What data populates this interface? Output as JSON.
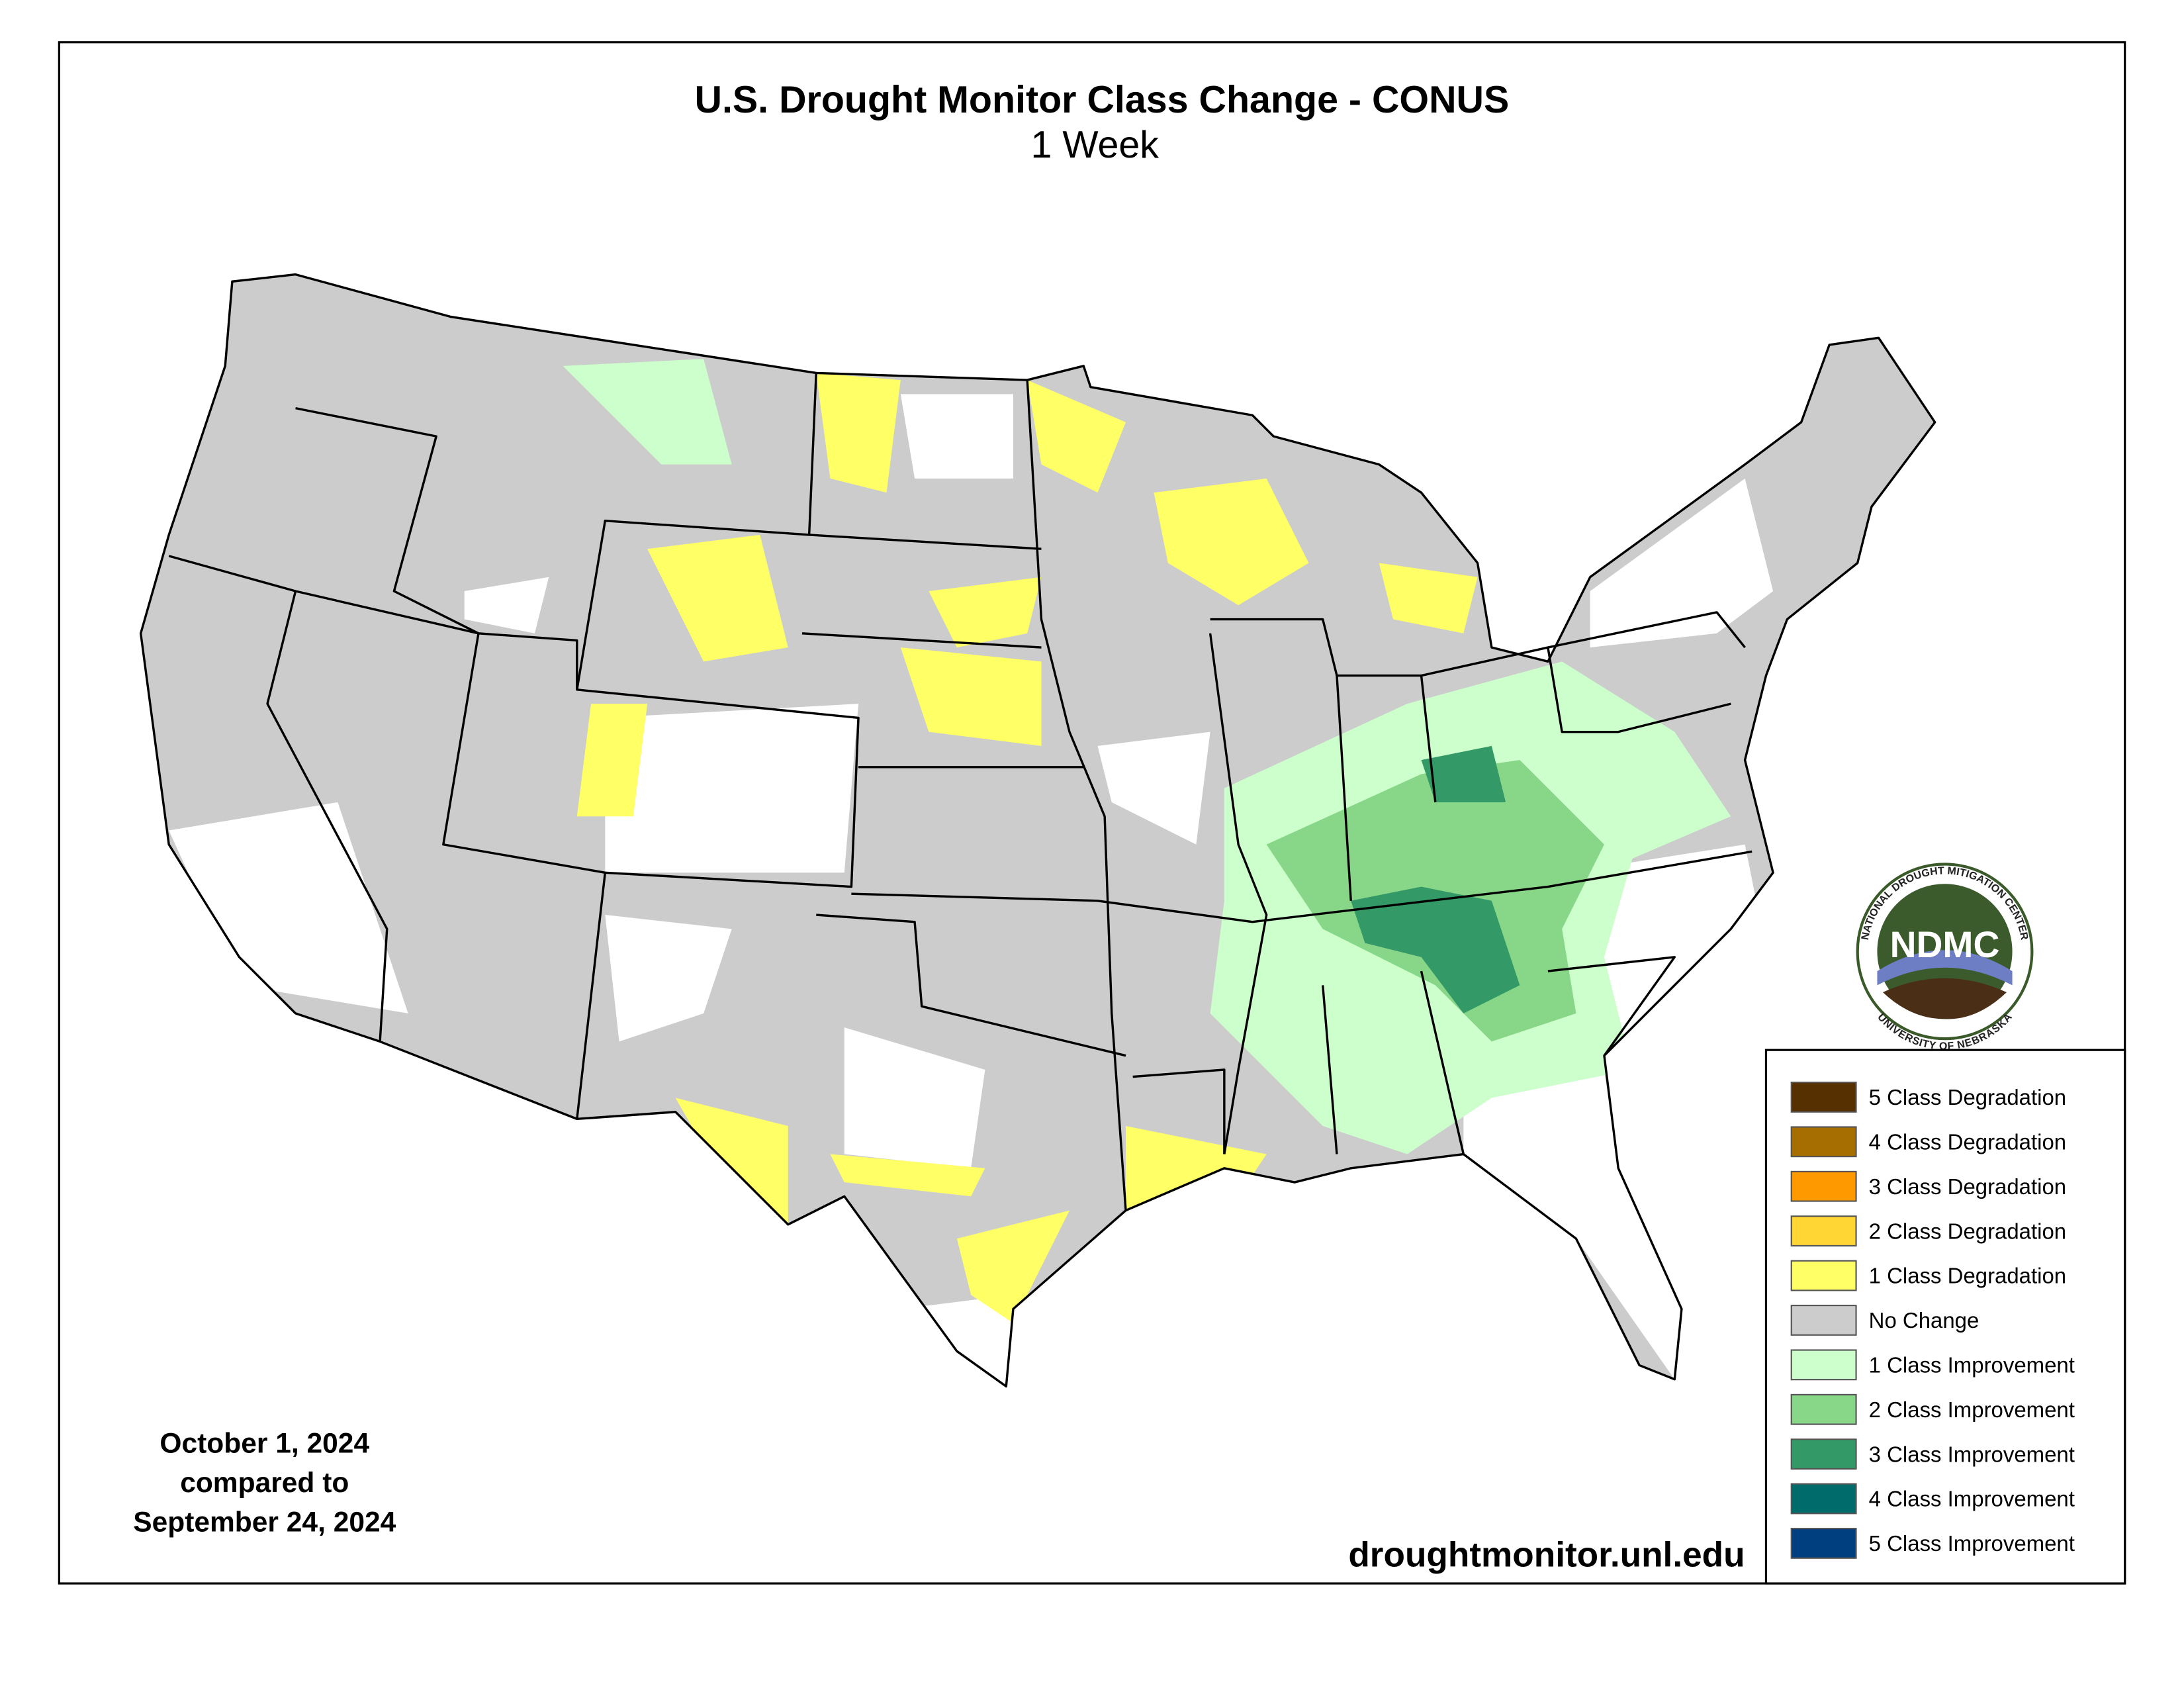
{
  "title": "U.S. Drought Monitor Class Change - CONUS",
  "subtitle": "1 Week",
  "date_text": [
    "October 1, 2024",
    "compared to",
    "September 24, 2024"
  ],
  "website": "droughtmonitor.unl.edu",
  "logo": {
    "abbr": "NDMC",
    "top_text": "NATIONAL DROUGHT MITIGATION CENTER",
    "bottom_text": "UNIVERSITY OF NEBRASKA"
  },
  "legend": [
    {
      "name": "5 Class Degradation",
      "color": "#573000"
    },
    {
      "name": "4 Class Degradation",
      "color": "#a66d00"
    },
    {
      "name": "3 Class Degradation",
      "color": "#ff9900"
    },
    {
      "name": "2 Class Degradation",
      "color": "#ffd633"
    },
    {
      "name": "1 Class Degradation",
      "color": "#ffff66"
    },
    {
      "name": "No Change",
      "color": "#cccccc"
    },
    {
      "name": "1 Class Improvement",
      "color": "#ccffcc"
    },
    {
      "name": "2 Class Improvement",
      "color": "#88d688"
    },
    {
      "name": "3 Class Improvement",
      "color": "#339966"
    },
    {
      "name": "4 Class Improvement",
      "color": "#006b6b"
    },
    {
      "name": "5 Class Improvement",
      "color": "#003f7f"
    }
  ]
}
